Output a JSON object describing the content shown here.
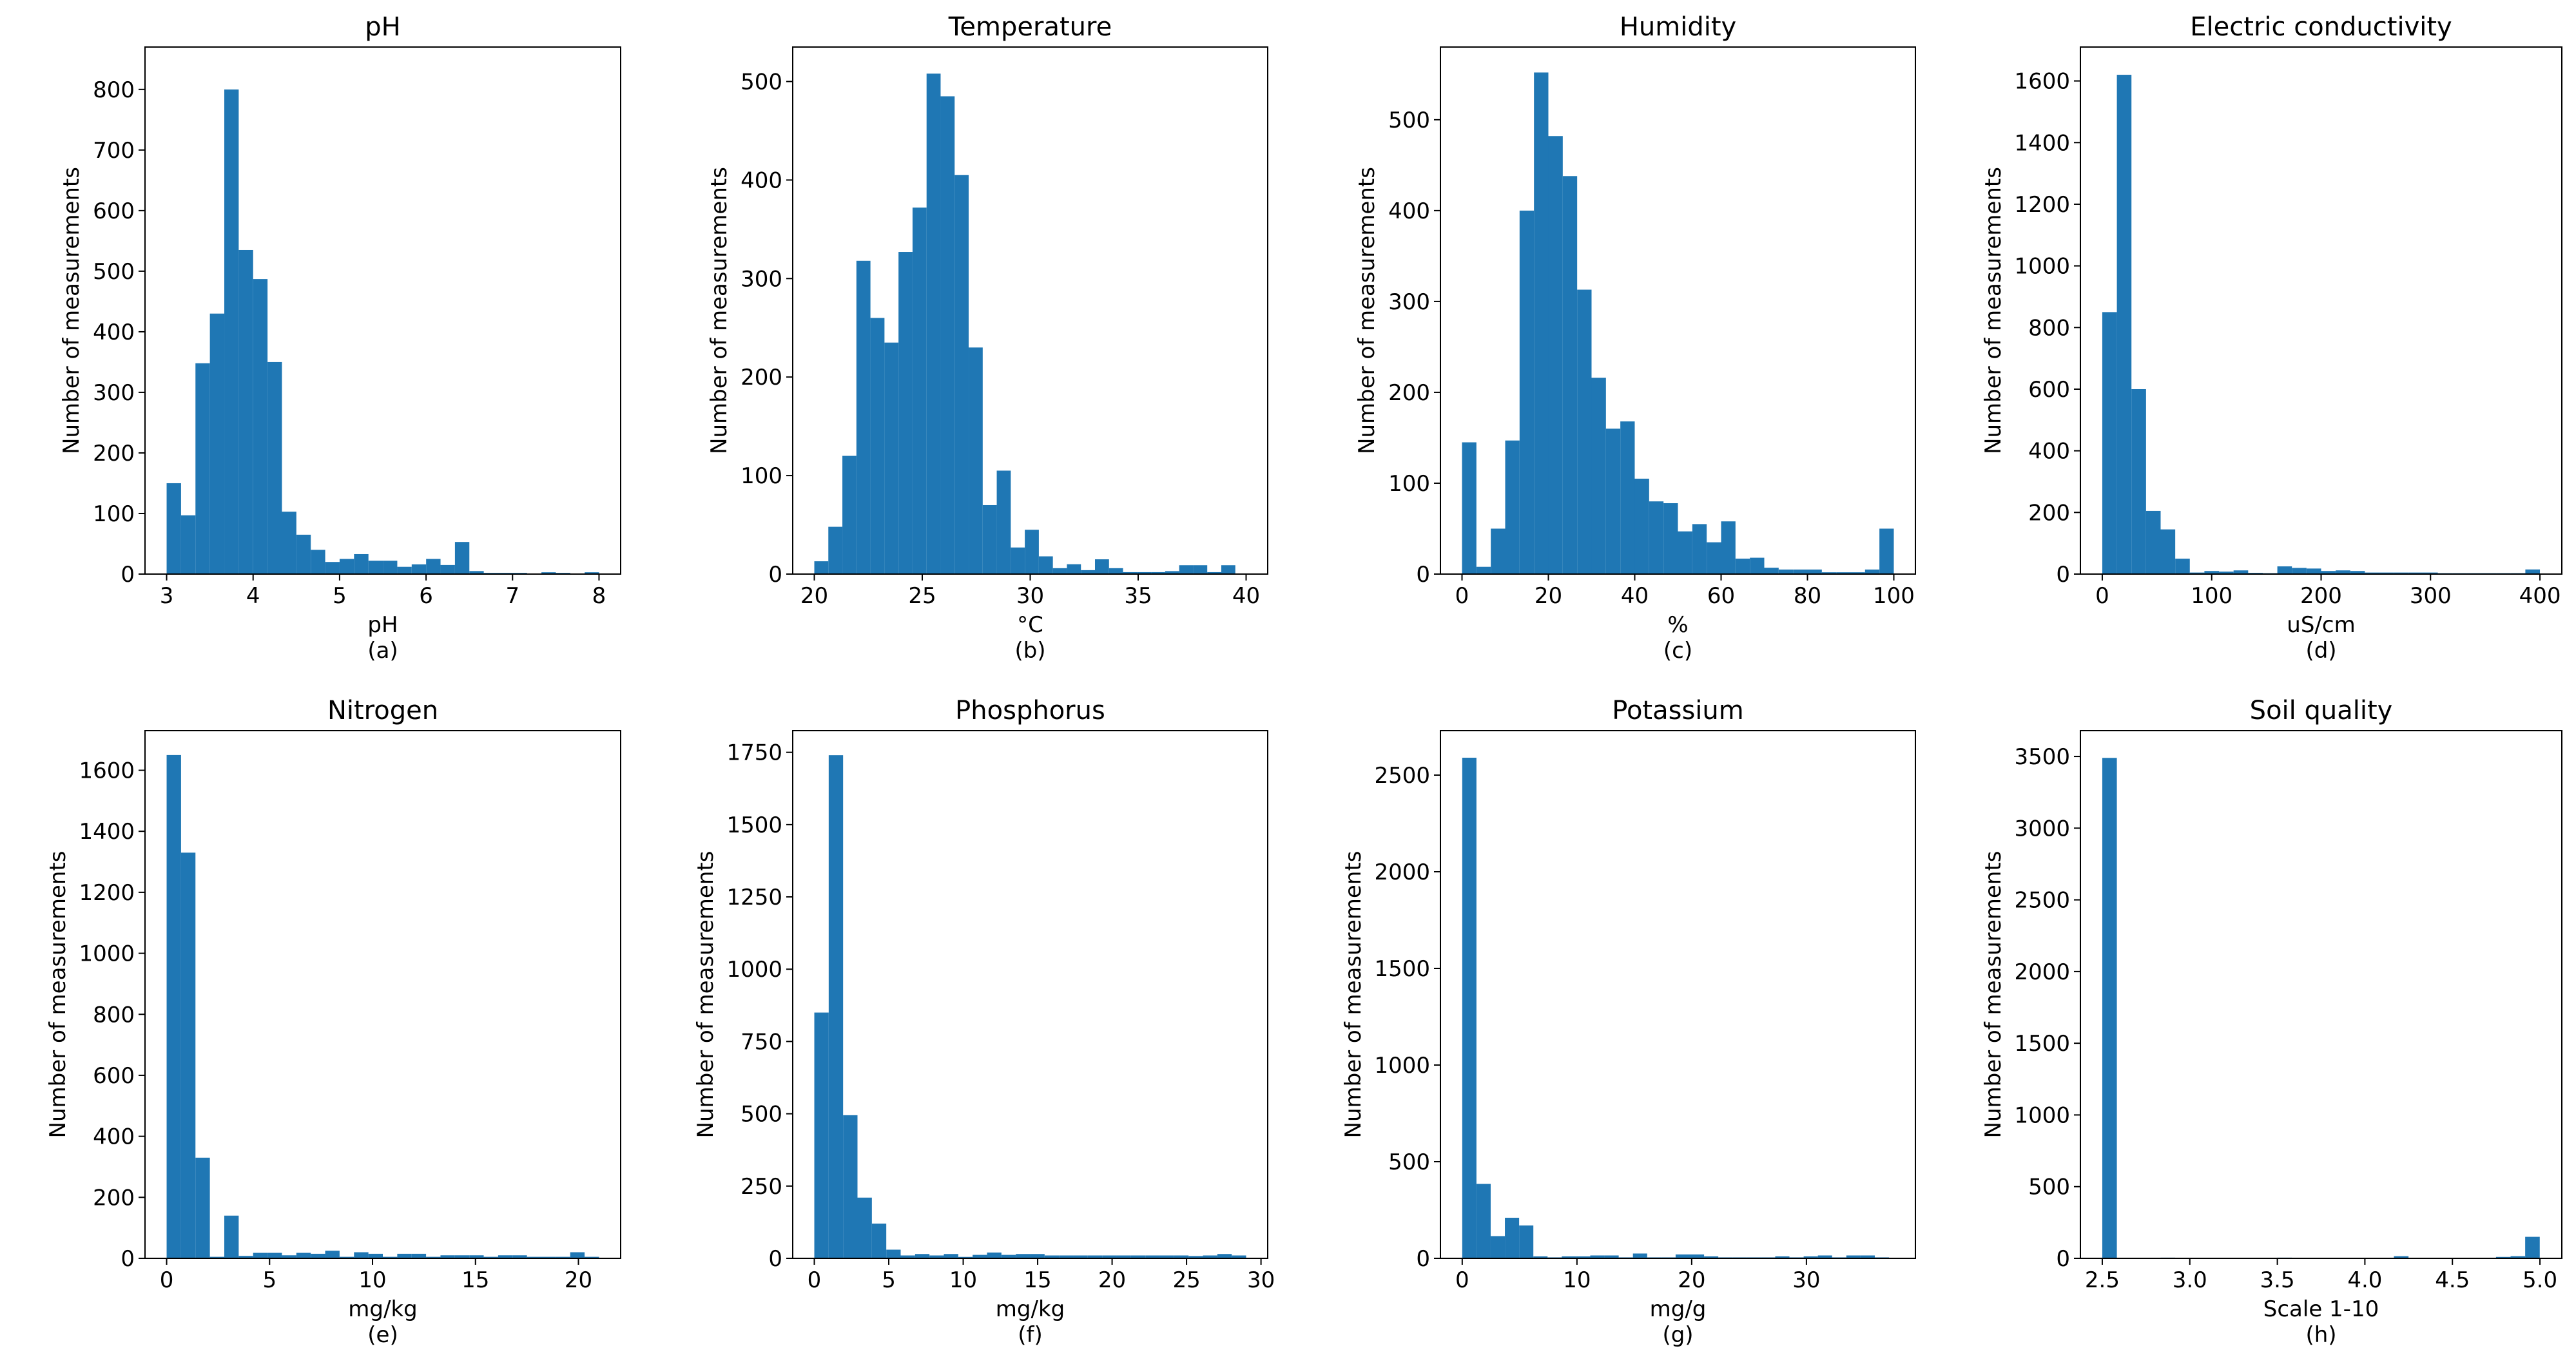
{
  "figure": {
    "ylabel": "Number of measurements",
    "bar_color": "#1f77b4"
  },
  "chart_data": [
    {
      "type": "bar",
      "title": "pH",
      "xlabel": "pH",
      "caption": "(a)",
      "xlim": [
        2.75,
        8.25
      ],
      "ylim": [
        0,
        870
      ],
      "xticks": [
        3,
        4,
        5,
        6,
        7,
        8
      ],
      "xtick_labels": [
        "3",
        "4",
        "5",
        "6",
        "7",
        "8"
      ],
      "yticks": [
        0,
        100,
        200,
        300,
        400,
        500,
        600,
        700,
        800
      ],
      "ytick_labels": [
        "0",
        "100",
        "200",
        "300",
        "400",
        "500",
        "600",
        "700",
        "800"
      ],
      "bin_start": 3.0,
      "bin_width": 0.1667,
      "values": [
        150,
        97,
        348,
        430,
        800,
        535,
        487,
        350,
        103,
        65,
        40,
        20,
        25,
        33,
        22,
        22,
        12,
        16,
        25,
        15,
        53,
        5,
        2,
        2,
        2,
        1,
        3,
        2,
        1,
        3
      ]
    },
    {
      "type": "bar",
      "title": "Temperature",
      "xlabel": "°C",
      "caption": "(b)",
      "xlim": [
        19.0,
        41.0
      ],
      "ylim": [
        0,
        535
      ],
      "xticks": [
        20,
        25,
        30,
        35,
        40
      ],
      "xtick_labels": [
        "20",
        "25",
        "30",
        "35",
        "40"
      ],
      "yticks": [
        0,
        100,
        200,
        300,
        400,
        500
      ],
      "ytick_labels": [
        "0",
        "100",
        "200",
        "300",
        "400",
        "500"
      ],
      "bin_start": 20.0,
      "bin_width": 0.65,
      "values": [
        13,
        48,
        120,
        318,
        260,
        235,
        327,
        372,
        508,
        485,
        405,
        230,
        70,
        105,
        27,
        45,
        18,
        6,
        10,
        4,
        15,
        6,
        2,
        2,
        2,
        3,
        9,
        9,
        2,
        9
      ]
    },
    {
      "type": "bar",
      "title": "Humidity",
      "xlabel": "%",
      "caption": "(c)",
      "xlim": [
        -5,
        105
      ],
      "ylim": [
        0,
        580
      ],
      "xticks": [
        0,
        20,
        40,
        60,
        80,
        100
      ],
      "xtick_labels": [
        "0",
        "20",
        "40",
        "60",
        "80",
        "100"
      ],
      "yticks": [
        0,
        100,
        200,
        300,
        400,
        500
      ],
      "ytick_labels": [
        "0",
        "100",
        "200",
        "300",
        "400",
        "500"
      ],
      "bin_start": 0,
      "bin_width": 3.3333,
      "values": [
        145,
        8,
        50,
        147,
        400,
        552,
        482,
        438,
        313,
        216,
        160,
        168,
        105,
        80,
        78,
        47,
        55,
        35,
        58,
        17,
        18,
        7,
        5,
        5,
        5,
        2,
        2,
        2,
        5,
        50
      ]
    },
    {
      "type": "bar",
      "title": "Electric conductivity",
      "xlabel": "uS/cm",
      "caption": "(d)",
      "xlim": [
        -20,
        420
      ],
      "ylim": [
        0,
        1710
      ],
      "xticks": [
        0,
        100,
        200,
        300,
        400
      ],
      "xtick_labels": [
        "0",
        "100",
        "200",
        "300",
        "400"
      ],
      "yticks": [
        0,
        200,
        400,
        600,
        800,
        1000,
        1200,
        1400,
        1600
      ],
      "ytick_labels": [
        "0",
        "200",
        "400",
        "600",
        "800",
        "1000",
        "1200",
        "1400",
        "1600"
      ],
      "bin_start": 0,
      "bin_width": 13.3333,
      "values": [
        850,
        1620,
        600,
        205,
        145,
        50,
        5,
        10,
        8,
        12,
        4,
        3,
        25,
        20,
        18,
        10,
        12,
        10,
        5,
        5,
        5,
        5,
        5,
        3,
        3,
        3,
        3,
        3,
        3,
        15
      ]
    },
    {
      "type": "bar",
      "title": "Nitrogen",
      "xlabel": "mg/kg",
      "caption": "(e)",
      "xlim": [
        -1.05,
        22.05
      ],
      "ylim": [
        0,
        1730
      ],
      "xticks": [
        0,
        5,
        10,
        15,
        20
      ],
      "xtick_labels": [
        "0",
        "5",
        "10",
        "15",
        "20"
      ],
      "yticks": [
        0,
        200,
        400,
        600,
        800,
        1000,
        1200,
        1400,
        1600
      ],
      "ytick_labels": [
        "0",
        "200",
        "400",
        "600",
        "800",
        "1000",
        "1200",
        "1400",
        "1600"
      ],
      "bin_start": 0,
      "bin_width": 0.7,
      "values": [
        1650,
        1330,
        330,
        5,
        140,
        8,
        18,
        18,
        10,
        18,
        15,
        25,
        5,
        20,
        15,
        5,
        15,
        15,
        5,
        10,
        10,
        10,
        5,
        10,
        10,
        5,
        5,
        5,
        20,
        5
      ]
    },
    {
      "type": "bar",
      "title": "Phosphorus",
      "xlabel": "mg/kg",
      "caption": "(f)",
      "xlim": [
        -1.45,
        30.45
      ],
      "ylim": [
        0,
        1825
      ],
      "xticks": [
        0,
        5,
        10,
        15,
        20,
        25,
        30
      ],
      "xtick_labels": [
        "0",
        "5",
        "10",
        "15",
        "20",
        "25",
        "30"
      ],
      "yticks": [
        0,
        250,
        500,
        750,
        1000,
        1250,
        1500,
        1750
      ],
      "ytick_labels": [
        "0",
        "250",
        "500",
        "750",
        "1000",
        "1250",
        "1500",
        "1750"
      ],
      "bin_start": 0,
      "bin_width": 0.9667,
      "values": [
        850,
        1740,
        495,
        210,
        120,
        30,
        10,
        15,
        10,
        15,
        5,
        12,
        20,
        12,
        15,
        15,
        10,
        10,
        10,
        10,
        10,
        10,
        10,
        10,
        10,
        10,
        8,
        10,
        15,
        10
      ]
    },
    {
      "type": "bar",
      "title": "Potassium",
      "xlabel": "mg/g",
      "caption": "(g)",
      "xlim": [
        -1.9,
        39.5
      ],
      "ylim": [
        0,
        2730
      ],
      "xticks": [
        0,
        10,
        20,
        30
      ],
      "xtick_labels": [
        "0",
        "10",
        "20",
        "30"
      ],
      "yticks": [
        0,
        500,
        1000,
        1500,
        2000,
        2500
      ],
      "ytick_labels": [
        "0",
        "500",
        "1000",
        "1500",
        "2000",
        "2500"
      ],
      "bin_start": 0,
      "bin_width": 1.24,
      "values": [
        2590,
        385,
        115,
        210,
        170,
        10,
        5,
        10,
        10,
        15,
        15,
        5,
        25,
        5,
        5,
        20,
        20,
        10,
        5,
        5,
        5,
        5,
        10,
        5,
        10,
        15,
        5,
        15,
        15,
        5
      ]
    },
    {
      "type": "bar",
      "title": "Soil quality",
      "xlabel": "Scale 1-10",
      "caption": "(h)",
      "xlim": [
        2.375,
        5.125
      ],
      "ylim": [
        0,
        3680
      ],
      "xticks": [
        2.5,
        3.0,
        3.5,
        4.0,
        4.5,
        5.0
      ],
      "xtick_labels": [
        "2.5",
        "3.0",
        "3.5",
        "4.0",
        "4.5",
        "5.0"
      ],
      "yticks": [
        0,
        500,
        1000,
        1500,
        2000,
        2500,
        3000,
        3500
      ],
      "ytick_labels": [
        "0",
        "500",
        "1000",
        "1500",
        "2000",
        "2500",
        "3000",
        "3500"
      ],
      "bin_start": 2.5,
      "bin_width": 0.0833,
      "values": [
        3490,
        0,
        0,
        0,
        5,
        0,
        0,
        0,
        0,
        0,
        0,
        0,
        5,
        0,
        0,
        0,
        0,
        0,
        0,
        0,
        15,
        0,
        0,
        0,
        0,
        0,
        0,
        10,
        15,
        150
      ]
    }
  ]
}
